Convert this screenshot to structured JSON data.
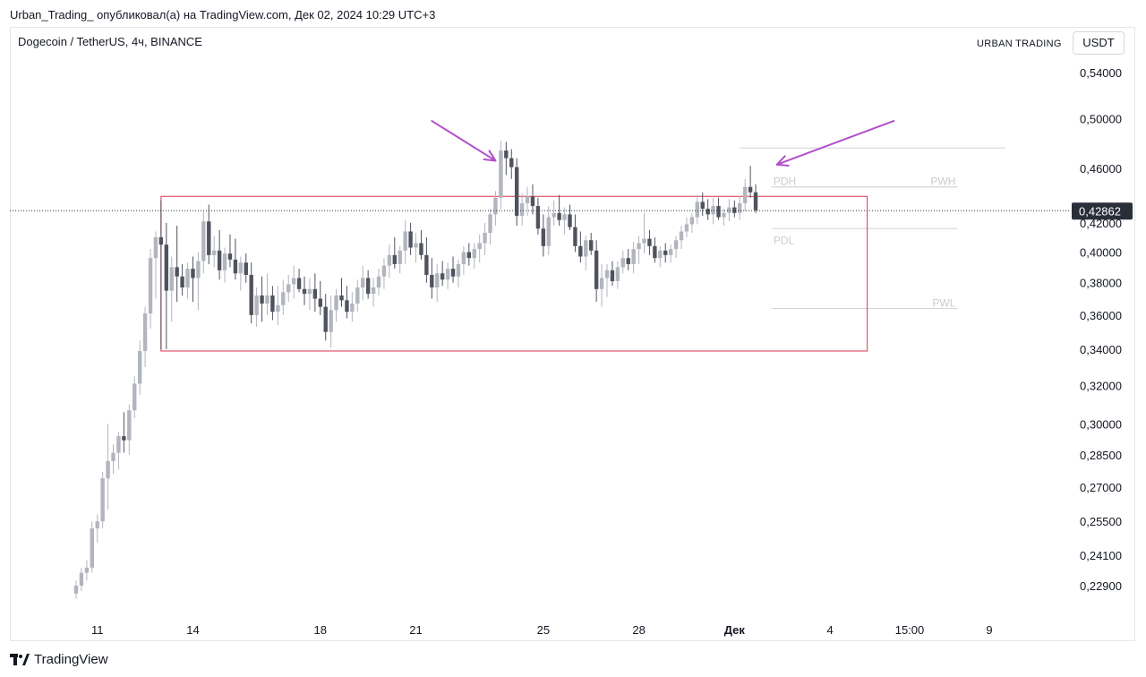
{
  "header": {
    "published_line": "Urban_Trading_ опубликовал(а) на TradingView.com, Дек 02, 2024 10:29 UTC+3",
    "symbol_line": "Dogecoin / TetherUS, 4ч, BINANCE",
    "brand": "URBAN TRADING",
    "currency_button": "USDT"
  },
  "footer": {
    "logo_text": "TradingView"
  },
  "chart_data": {
    "type": "candlestick",
    "symbol": "Dogecoin / TetherUS",
    "timeframe": "4ч",
    "exchange": "BINANCE",
    "y_axis": {
      "scale": "log",
      "range": [
        0.215,
        0.56
      ],
      "ticks": [
        0.54,
        0.5,
        0.46,
        0.42,
        0.4,
        0.38,
        0.36,
        0.34,
        0.32,
        0.3,
        0.285,
        0.27,
        0.255,
        0.241,
        0.229
      ],
      "tick_labels": [
        "0,54000",
        "0,50000",
        "0,46000",
        "0,42000",
        "0,40000",
        "0,38000",
        "0,36000",
        "0,34000",
        "0,32000",
        "0,30000",
        "0,28500",
        "0,27000",
        "0,25500",
        "0,24100",
        "0,22900"
      ]
    },
    "x_axis": {
      "ticks": [
        {
          "label": "11",
          "bar": 4,
          "bold": false
        },
        {
          "label": "14",
          "bar": 22,
          "bold": false
        },
        {
          "label": "18",
          "bar": 46,
          "bold": false
        },
        {
          "label": "21",
          "bar": 64,
          "bold": false
        },
        {
          "label": "25",
          "bar": 88,
          "bold": false
        },
        {
          "label": "28",
          "bar": 106,
          "bold": false
        },
        {
          "label": "Дек",
          "bar": 124,
          "bold": true
        },
        {
          "label": "4",
          "bar": 142,
          "bold": false
        },
        {
          "label": "15:00",
          "bar": 157,
          "bold": false
        },
        {
          "label": "9",
          "bar": 172,
          "bold": false
        }
      ]
    },
    "last_price": 0.42862,
    "last_price_label": "0,42862",
    "candles": [
      [
        0.226,
        0.231,
        0.224,
        0.229
      ],
      [
        0.229,
        0.236,
        0.227,
        0.234
      ],
      [
        0.234,
        0.239,
        0.231,
        0.236
      ],
      [
        0.236,
        0.255,
        0.234,
        0.252
      ],
      [
        0.252,
        0.258,
        0.246,
        0.255
      ],
      [
        0.255,
        0.277,
        0.252,
        0.274
      ],
      [
        0.274,
        0.3,
        0.26,
        0.282
      ],
      [
        0.282,
        0.29,
        0.276,
        0.286
      ],
      [
        0.286,
        0.296,
        0.278,
        0.294
      ],
      [
        0.294,
        0.306,
        0.286,
        0.292
      ],
      [
        0.292,
        0.31,
        0.285,
        0.307
      ],
      [
        0.307,
        0.325,
        0.303,
        0.321
      ],
      [
        0.321,
        0.345,
        0.315,
        0.339
      ],
      [
        0.339,
        0.365,
        0.33,
        0.361
      ],
      [
        0.361,
        0.402,
        0.352,
        0.396
      ],
      [
        0.396,
        0.414,
        0.37,
        0.41
      ],
      [
        0.41,
        0.436,
        0.34,
        0.405
      ],
      [
        0.405,
        0.42,
        0.34,
        0.375
      ],
      [
        0.375,
        0.397,
        0.356,
        0.39
      ],
      [
        0.39,
        0.418,
        0.368,
        0.384
      ],
      [
        0.384,
        0.392,
        0.372,
        0.377
      ],
      [
        0.377,
        0.393,
        0.37,
        0.389
      ],
      [
        0.389,
        0.397,
        0.368,
        0.383
      ],
      [
        0.383,
        0.4,
        0.363,
        0.394
      ],
      [
        0.394,
        0.428,
        0.386,
        0.421
      ],
      [
        0.421,
        0.433,
        0.392,
        0.398
      ],
      [
        0.398,
        0.411,
        0.39,
        0.401
      ],
      [
        0.401,
        0.415,
        0.382,
        0.388
      ],
      [
        0.388,
        0.403,
        0.38,
        0.399
      ],
      [
        0.399,
        0.412,
        0.39,
        0.395
      ],
      [
        0.395,
        0.409,
        0.382,
        0.386
      ],
      [
        0.386,
        0.397,
        0.375,
        0.393
      ],
      [
        0.393,
        0.399,
        0.38,
        0.385
      ],
      [
        0.385,
        0.393,
        0.355,
        0.36
      ],
      [
        0.36,
        0.377,
        0.353,
        0.372
      ],
      [
        0.372,
        0.384,
        0.356,
        0.367
      ],
      [
        0.367,
        0.386,
        0.36,
        0.372
      ],
      [
        0.372,
        0.378,
        0.357,
        0.362
      ],
      [
        0.362,
        0.378,
        0.354,
        0.366
      ],
      [
        0.366,
        0.382,
        0.36,
        0.374
      ],
      [
        0.374,
        0.385,
        0.368,
        0.379
      ],
      [
        0.379,
        0.391,
        0.37,
        0.383
      ],
      [
        0.383,
        0.389,
        0.374,
        0.376
      ],
      [
        0.376,
        0.384,
        0.366,
        0.373
      ],
      [
        0.373,
        0.383,
        0.363,
        0.376
      ],
      [
        0.376,
        0.386,
        0.362,
        0.37
      ],
      [
        0.37,
        0.381,
        0.36,
        0.365
      ],
      [
        0.365,
        0.373,
        0.345,
        0.35
      ],
      [
        0.35,
        0.372,
        0.341,
        0.363
      ],
      [
        0.363,
        0.376,
        0.356,
        0.372
      ],
      [
        0.372,
        0.383,
        0.365,
        0.369
      ],
      [
        0.369,
        0.378,
        0.358,
        0.362
      ],
      [
        0.362,
        0.374,
        0.356,
        0.367
      ],
      [
        0.367,
        0.382,
        0.362,
        0.377
      ],
      [
        0.377,
        0.391,
        0.369,
        0.383
      ],
      [
        0.383,
        0.388,
        0.37,
        0.373
      ],
      [
        0.373,
        0.383,
        0.365,
        0.377
      ],
      [
        0.377,
        0.389,
        0.372,
        0.384
      ],
      [
        0.384,
        0.396,
        0.376,
        0.391
      ],
      [
        0.391,
        0.405,
        0.383,
        0.398
      ],
      [
        0.398,
        0.41,
        0.389,
        0.392
      ],
      [
        0.392,
        0.404,
        0.386,
        0.401
      ],
      [
        0.401,
        0.422,
        0.392,
        0.414
      ],
      [
        0.414,
        0.42,
        0.398,
        0.403
      ],
      [
        0.403,
        0.413,
        0.393,
        0.406
      ],
      [
        0.406,
        0.415,
        0.395,
        0.398
      ],
      [
        0.398,
        0.41,
        0.38,
        0.385
      ],
      [
        0.385,
        0.396,
        0.37,
        0.377
      ],
      [
        0.377,
        0.392,
        0.368,
        0.386
      ],
      [
        0.386,
        0.394,
        0.378,
        0.382
      ],
      [
        0.382,
        0.393,
        0.376,
        0.389
      ],
      [
        0.389,
        0.397,
        0.38,
        0.384
      ],
      [
        0.384,
        0.395,
        0.377,
        0.392
      ],
      [
        0.392,
        0.404,
        0.385,
        0.4
      ],
      [
        0.4,
        0.406,
        0.391,
        0.396
      ],
      [
        0.396,
        0.406,
        0.389,
        0.402
      ],
      [
        0.402,
        0.412,
        0.393,
        0.406
      ],
      [
        0.406,
        0.42,
        0.398,
        0.413
      ],
      [
        0.413,
        0.43,
        0.405,
        0.426
      ],
      [
        0.426,
        0.443,
        0.418,
        0.438
      ],
      [
        0.438,
        0.482,
        0.43,
        0.474
      ],
      [
        0.474,
        0.481,
        0.455,
        0.468
      ],
      [
        0.468,
        0.475,
        0.452,
        0.461
      ],
      [
        0.461,
        0.468,
        0.418,
        0.425
      ],
      [
        0.425,
        0.441,
        0.418,
        0.434
      ],
      [
        0.434,
        0.446,
        0.425,
        0.439
      ],
      [
        0.439,
        0.448,
        0.426,
        0.432
      ],
      [
        0.432,
        0.438,
        0.412,
        0.416
      ],
      [
        0.416,
        0.426,
        0.397,
        0.404
      ],
      [
        0.404,
        0.432,
        0.398,
        0.424
      ],
      [
        0.424,
        0.436,
        0.418,
        0.427
      ],
      [
        0.427,
        0.44,
        0.418,
        0.422
      ],
      [
        0.422,
        0.431,
        0.412,
        0.426
      ],
      [
        0.426,
        0.433,
        0.415,
        0.417
      ],
      [
        0.417,
        0.426,
        0.4,
        0.404
      ],
      [
        0.404,
        0.414,
        0.393,
        0.397
      ],
      [
        0.397,
        0.411,
        0.388,
        0.408
      ],
      [
        0.408,
        0.413,
        0.398,
        0.401
      ],
      [
        0.401,
        0.408,
        0.368,
        0.376
      ],
      [
        0.376,
        0.392,
        0.365,
        0.383
      ],
      [
        0.383,
        0.392,
        0.371,
        0.388
      ],
      [
        0.388,
        0.394,
        0.378,
        0.381
      ],
      [
        0.381,
        0.394,
        0.376,
        0.39
      ],
      [
        0.39,
        0.401,
        0.386,
        0.396
      ],
      [
        0.396,
        0.402,
        0.388,
        0.392
      ],
      [
        0.392,
        0.407,
        0.386,
        0.402
      ],
      [
        0.402,
        0.411,
        0.392,
        0.406
      ],
      [
        0.406,
        0.427,
        0.399,
        0.409
      ],
      [
        0.409,
        0.415,
        0.398,
        0.404
      ],
      [
        0.404,
        0.41,
        0.393,
        0.396
      ],
      [
        0.396,
        0.404,
        0.39,
        0.401
      ],
      [
        0.401,
        0.406,
        0.393,
        0.398
      ],
      [
        0.398,
        0.405,
        0.393,
        0.402
      ],
      [
        0.402,
        0.411,
        0.396,
        0.408
      ],
      [
        0.408,
        0.418,
        0.402,
        0.414
      ],
      [
        0.414,
        0.424,
        0.41,
        0.419
      ],
      [
        0.419,
        0.427,
        0.413,
        0.424
      ],
      [
        0.424,
        0.44,
        0.419,
        0.435
      ],
      [
        0.435,
        0.442,
        0.425,
        0.43
      ],
      [
        0.43,
        0.437,
        0.422,
        0.426
      ],
      [
        0.426,
        0.438,
        0.419,
        0.432
      ],
      [
        0.432,
        0.438,
        0.422,
        0.424
      ],
      [
        0.424,
        0.43,
        0.418,
        0.427
      ],
      [
        0.427,
        0.437,
        0.421,
        0.431
      ],
      [
        0.431,
        0.436,
        0.424,
        0.427
      ],
      [
        0.427,
        0.439,
        0.422,
        0.434
      ],
      [
        0.434,
        0.452,
        0.428,
        0.446
      ],
      [
        0.446,
        0.462,
        0.438,
        0.442
      ],
      [
        0.442,
        0.448,
        0.427,
        0.429
      ]
    ],
    "drawings": {
      "range_box": {
        "top": 0.439,
        "bottom": 0.339,
        "from_bar": 16,
        "to_bar": 149,
        "color": "#e0556c"
      },
      "levels": [
        {
          "label": "PDH",
          "value": 0.446,
          "from_bar": 131,
          "to_bar": 166
        },
        {
          "label": "PWH",
          "value": 0.446,
          "from_bar": 131,
          "to_bar": 166
        },
        {
          "label": "PDL",
          "value": 0.416,
          "from_bar": 131,
          "to_bar": 166
        },
        {
          "label": "PWL",
          "value": 0.364,
          "from_bar": 131,
          "to_bar": 166
        },
        {
          "label": "",
          "value": 0.476,
          "from_bar": 125,
          "to_bar": 175
        }
      ],
      "arrows": [
        {
          "from_bar": 67,
          "from_price": 0.498,
          "to_bar": 79,
          "to_price": 0.466,
          "color": "#b24fc9"
        },
        {
          "from_bar": 154,
          "from_price": 0.498,
          "to_bar": 132,
          "to_price": 0.463,
          "color": "#b24fc9"
        }
      ]
    }
  }
}
